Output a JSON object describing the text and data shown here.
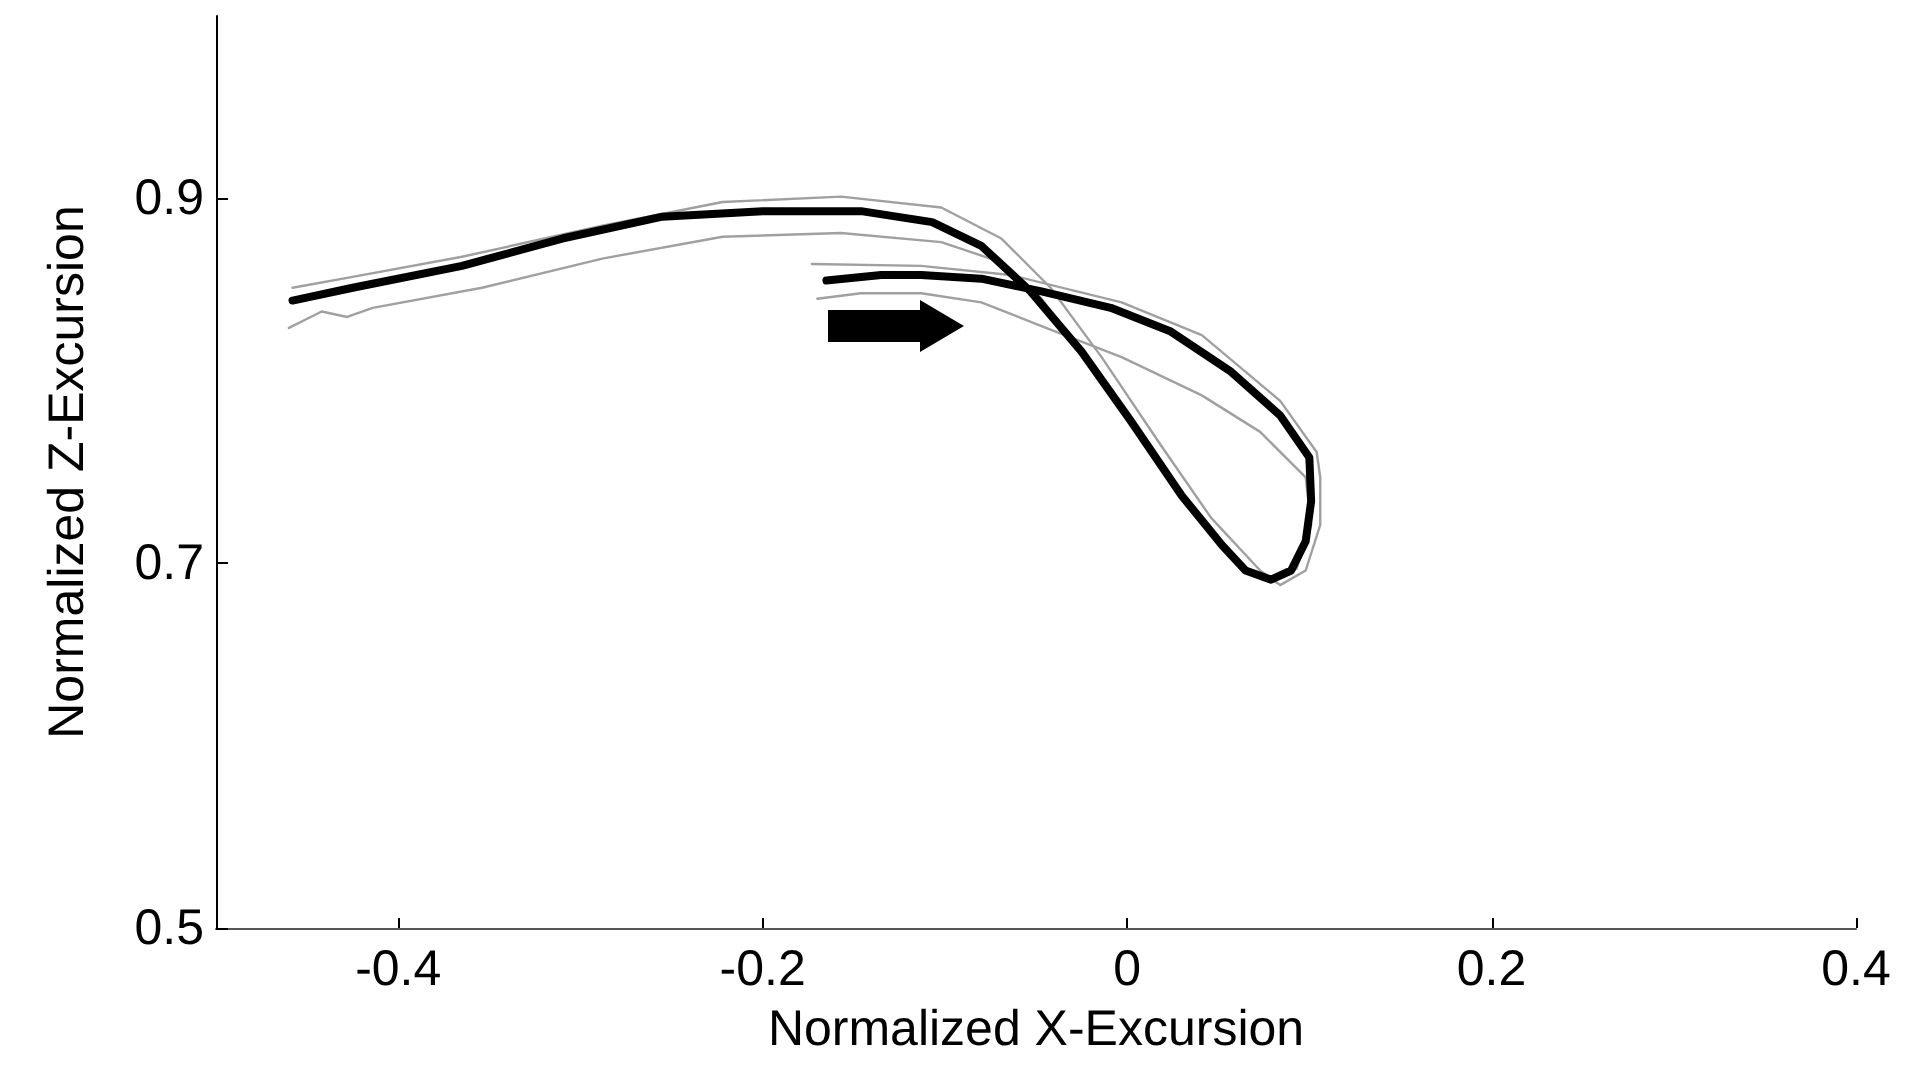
{
  "chart_data": {
    "type": "line",
    "xlabel": "Normalized X-Excursion",
    "ylabel": "Normalized Z-Excursion",
    "xlim": [
      -0.5,
      0.4
    ],
    "xticks": [
      -0.4,
      -0.2,
      0,
      0.2,
      0.4
    ],
    "ylim": [
      0.5,
      1.0
    ],
    "yticks": [
      0.5,
      0.7,
      0.9
    ],
    "grid": false,
    "marker": "none",
    "line_style": "solid",
    "series": [
      {
        "color": "#a0a0a0",
        "x": [
          -0.458,
          -0.425,
          -0.365,
          -0.288,
          -0.222,
          -0.157,
          -0.102,
          -0.069,
          -0.042,
          -0.014,
          0.019,
          0.046,
          0.073,
          0.084,
          0.098,
          0.106,
          0.106,
          0.104,
          0.084,
          0.041,
          -0.003,
          -0.064,
          -0.113,
          -0.173
        ],
        "values": [
          0.851,
          0.857,
          0.868,
          0.885,
          0.898,
          0.901,
          0.895,
          0.878,
          0.851,
          0.813,
          0.764,
          0.725,
          0.696,
          0.688,
          0.696,
          0.721,
          0.747,
          0.761,
          0.789,
          0.825,
          0.843,
          0.858,
          0.863,
          0.864
        ]
      },
      {
        "color": "#a0a0a0",
        "x": [
          -0.46,
          -0.442,
          -0.428,
          -0.414,
          -0.354,
          -0.288,
          -0.222,
          -0.157,
          -0.102,
          -0.069,
          -0.047,
          -0.02,
          0.008,
          0.041,
          0.062,
          0.079,
          0.093,
          0.101,
          0.098,
          0.073,
          0.041,
          -0.003,
          -0.047,
          -0.08,
          -0.113,
          -0.146,
          -0.17
        ],
        "values": [
          0.829,
          0.838,
          0.835,
          0.84,
          0.851,
          0.867,
          0.879,
          0.881,
          0.876,
          0.865,
          0.845,
          0.81,
          0.769,
          0.723,
          0.699,
          0.69,
          0.697,
          0.721,
          0.747,
          0.772,
          0.792,
          0.813,
          0.83,
          0.843,
          0.848,
          0.848,
          0.845
        ]
      },
      {
        "color": "#000000",
        "x": [
          -0.458,
          -0.425,
          -0.365,
          -0.31,
          -0.255,
          -0.2,
          -0.146,
          -0.107,
          -0.08,
          -0.053,
          -0.025,
          0.002,
          0.03,
          0.052,
          0.065,
          0.079,
          0.09,
          0.098,
          0.101,
          0.1,
          0.084,
          0.057,
          0.024,
          -0.009,
          -0.047,
          -0.08,
          -0.113,
          -0.135,
          -0.165
        ],
        "values": [
          0.844,
          0.851,
          0.863,
          0.878,
          0.89,
          0.893,
          0.893,
          0.887,
          0.874,
          0.849,
          0.816,
          0.778,
          0.737,
          0.71,
          0.696,
          0.691,
          0.696,
          0.712,
          0.734,
          0.758,
          0.781,
          0.805,
          0.827,
          0.84,
          0.849,
          0.856,
          0.858,
          0.858,
          0.855
        ]
      }
    ]
  }
}
